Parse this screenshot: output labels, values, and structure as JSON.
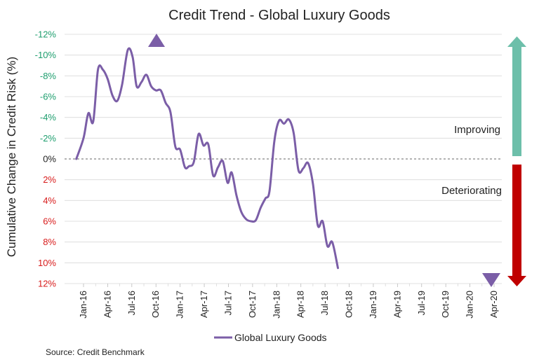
{
  "chart_data": {
    "type": "line",
    "title": "Credit Trend - Global Luxury Goods",
    "ylabel": "Cumulative Change in Credit Risk (%)",
    "xlabel": "",
    "y_inverted": true,
    "ylim": [
      -12,
      12
    ],
    "y_ticks": [
      {
        "value": -12,
        "label": "-12%"
      },
      {
        "value": -10,
        "label": "-10%"
      },
      {
        "value": -8,
        "label": "-8%"
      },
      {
        "value": -6,
        "label": "-6%"
      },
      {
        "value": -4,
        "label": "-4%"
      },
      {
        "value": -2,
        "label": "-2%"
      },
      {
        "value": 0,
        "label": "0%"
      },
      {
        "value": 2,
        "label": "2%"
      },
      {
        "value": 4,
        "label": "4%"
      },
      {
        "value": 6,
        "label": "6%"
      },
      {
        "value": 8,
        "label": "8%"
      },
      {
        "value": 10,
        "label": "10%"
      },
      {
        "value": 12,
        "label": "12%"
      }
    ],
    "x_range": [
      0,
      51
    ],
    "x_ticks": [
      {
        "value": 0,
        "label": "Jan-16"
      },
      {
        "value": 3,
        "label": "Apr-16"
      },
      {
        "value": 6,
        "label": "Jul-16"
      },
      {
        "value": 9,
        "label": "Oct-16"
      },
      {
        "value": 12,
        "label": "Jan-17"
      },
      {
        "value": 15,
        "label": "Apr-17"
      },
      {
        "value": 18,
        "label": "Jul-17"
      },
      {
        "value": 21,
        "label": "Oct-17"
      },
      {
        "value": 24,
        "label": "Jan-18"
      },
      {
        "value": 27,
        "label": "Apr-18"
      },
      {
        "value": 30,
        "label": "Jul-18"
      },
      {
        "value": 33,
        "label": "Oct-18"
      },
      {
        "value": 36,
        "label": "Jan-19"
      },
      {
        "value": 39,
        "label": "Apr-19"
      },
      {
        "value": 42,
        "label": "Jul-19"
      },
      {
        "value": 45,
        "label": "Oct-19"
      },
      {
        "value": 48,
        "label": "Jan-20"
      },
      {
        "value": 51,
        "label": "Apr-20"
      }
    ],
    "series": [
      {
        "name": "Global Luxury Goods",
        "color": "#7b5ea7",
        "points": [
          [
            -0.9,
            0
          ],
          [
            0.0,
            -2.0
          ],
          [
            0.6,
            -4.4
          ],
          [
            1.2,
            -3.6
          ],
          [
            1.8,
            -8.6
          ],
          [
            2.4,
            -8.6
          ],
          [
            3.0,
            -7.7
          ],
          [
            3.6,
            -6.1
          ],
          [
            4.2,
            -5.6
          ],
          [
            4.8,
            -7.2
          ],
          [
            5.5,
            -10.5
          ],
          [
            6.1,
            -9.8
          ],
          [
            6.6,
            -7.0
          ],
          [
            7.2,
            -7.4
          ],
          [
            7.8,
            -8.1
          ],
          [
            8.4,
            -7.0
          ],
          [
            9.0,
            -6.6
          ],
          [
            9.6,
            -6.6
          ],
          [
            10.2,
            -5.4
          ],
          [
            10.8,
            -4.5
          ],
          [
            11.4,
            -1.2
          ],
          [
            12.0,
            -0.9
          ],
          [
            12.6,
            0.8
          ],
          [
            13.1,
            0.7
          ],
          [
            13.7,
            0.3
          ],
          [
            14.3,
            -2.4
          ],
          [
            14.9,
            -1.3
          ],
          [
            15.5,
            -1.4
          ],
          [
            16.1,
            1.6
          ],
          [
            16.7,
            0.8
          ],
          [
            17.3,
            0.2
          ],
          [
            17.9,
            2.3
          ],
          [
            18.4,
            1.3
          ],
          [
            19.0,
            3.5
          ],
          [
            19.6,
            5.1
          ],
          [
            20.2,
            5.8
          ],
          [
            20.8,
            6.0
          ],
          [
            21.4,
            5.9
          ],
          [
            22.0,
            4.7
          ],
          [
            22.6,
            3.8
          ],
          [
            23.1,
            3.1
          ],
          [
            23.7,
            -1.7
          ],
          [
            24.3,
            -3.7
          ],
          [
            24.9,
            -3.4
          ],
          [
            25.5,
            -3.8
          ],
          [
            26.1,
            -2.5
          ],
          [
            26.7,
            1.1
          ],
          [
            27.3,
            0.9
          ],
          [
            27.9,
            0.4
          ],
          [
            28.5,
            2.4
          ],
          [
            29.1,
            6.4
          ],
          [
            29.7,
            6.0
          ],
          [
            30.3,
            8.4
          ],
          [
            30.9,
            8.0
          ],
          [
            31.6,
            10.5
          ]
        ]
      }
    ],
    "annotations": [
      {
        "text": "Improving",
        "position": "right, above zero line"
      },
      {
        "text": "Deteriorating",
        "position": "right, below zero line"
      }
    ],
    "legend": {
      "position": "bottom-center",
      "entries": [
        "Global Luxury Goods"
      ]
    },
    "source": "Source: Credit Benchmark",
    "colors": {
      "line": "#7b5ea7",
      "marker": "#7b5ea7",
      "improving_arrow": "#6dbfaa",
      "deteriorating_arrow": "#c00000",
      "negative_tick": "#1e9e6e",
      "positive_tick": "#d81c1c",
      "grid": "#d9d9d9"
    }
  }
}
